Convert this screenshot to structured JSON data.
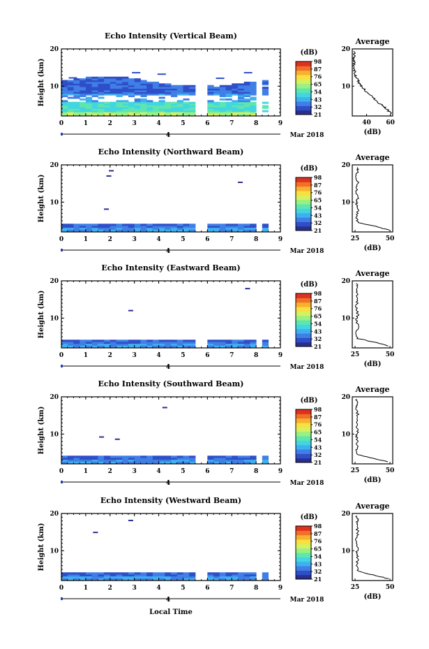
{
  "figure": {
    "xlabel": "Local Time",
    "date_label": "Mar 2018",
    "day_label": "4",
    "y_label": "Height (km)",
    "avg_title": "Average",
    "avg_xlabel": "(dB)",
    "cb_title": "(dB)"
  },
  "chart_data": [
    {
      "type": "heatmap",
      "title": "Echo Intensity (Vertical Beam)",
      "xlabel": "Local Time",
      "ylabel": "Height (km)",
      "xlim": [
        0,
        9
      ],
      "ylim": [
        2,
        20
      ],
      "xticks": [
        0,
        1,
        2,
        3,
        4,
        5,
        6,
        7,
        8,
        9
      ],
      "yticks": [
        10,
        20
      ],
      "colorbar": {
        "label": "(dB)",
        "ticks": [
          21,
          32,
          43,
          54,
          65,
          76,
          87,
          98
        ]
      },
      "average_profile": {
        "title": "Average",
        "xlabel": "(dB)",
        "xticks": [
          40,
          60
        ],
        "xlim": [
          28,
          62
        ],
        "ylim": [
          2,
          20
        ],
        "yticks": [
          10,
          20
        ],
        "points": [
          [
            61,
            2.5
          ],
          [
            58,
            3.5
          ],
          [
            55,
            4.5
          ],
          [
            50,
            5.5
          ],
          [
            47,
            6.5
          ],
          [
            44,
            7.5
          ],
          [
            40,
            8.5
          ],
          [
            37,
            9.5
          ],
          [
            34,
            10.5
          ],
          [
            33,
            11.5
          ],
          [
            31,
            12.5
          ],
          [
            30,
            13.5
          ],
          [
            30,
            14.5
          ],
          [
            29,
            15.5
          ],
          [
            30,
            16.5
          ],
          [
            29,
            17.5
          ],
          [
            30,
            18.5
          ],
          [
            29,
            19.5
          ]
        ]
      }
    },
    {
      "type": "heatmap",
      "title": "Echo Intensity (Northward Beam)",
      "xlabel": "Local Time",
      "ylabel": "Height (km)",
      "xlim": [
        0,
        9
      ],
      "ylim": [
        2,
        20
      ],
      "xticks": [
        0,
        1,
        2,
        3,
        4,
        5,
        6,
        7,
        8,
        9
      ],
      "yticks": [
        10,
        20
      ],
      "colorbar": {
        "label": "(dB)",
        "ticks": [
          21,
          32,
          43,
          54,
          65,
          76,
          87,
          98
        ]
      },
      "average_profile": {
        "title": "Average",
        "xlabel": "(dB)",
        "xticks": [
          25,
          50
        ],
        "xlim": [
          23,
          52
        ],
        "ylim": [
          2,
          20
        ],
        "yticks": [
          10,
          20
        ],
        "points": [
          [
            49,
            2.5
          ],
          [
            42,
            3.3
          ],
          [
            27,
            4.5
          ],
          [
            26,
            6
          ],
          [
            27,
            8
          ],
          [
            26,
            9.5
          ],
          [
            27,
            11
          ],
          [
            26,
            13
          ],
          [
            27,
            15
          ],
          [
            26,
            17
          ],
          [
            27,
            18.5
          ],
          [
            26,
            19.5
          ]
        ]
      }
    },
    {
      "type": "heatmap",
      "title": "Echo Intensity (Eastward Beam)",
      "xlabel": "Local Time",
      "ylabel": "Height (km)",
      "xlim": [
        0,
        9
      ],
      "ylim": [
        2,
        20
      ],
      "xticks": [
        0,
        1,
        2,
        3,
        4,
        5,
        6,
        7,
        8,
        9
      ],
      "yticks": [
        10,
        20
      ],
      "colorbar": {
        "label": "(dB)",
        "ticks": [
          21,
          32,
          43,
          54,
          65,
          76,
          87,
          98
        ]
      },
      "average_profile": {
        "title": "Average",
        "xlabel": "(dB)",
        "xticks": [
          25,
          50
        ],
        "xlim": [
          23,
          52
        ],
        "ylim": [
          2,
          20
        ],
        "yticks": [
          10,
          20
        ],
        "points": [
          [
            49,
            2.5
          ],
          [
            42,
            3.3
          ],
          [
            27,
            4.5
          ],
          [
            26,
            6
          ],
          [
            27,
            8
          ],
          [
            26,
            9.5
          ],
          [
            27,
            11
          ],
          [
            26,
            13
          ],
          [
            27,
            15
          ],
          [
            26,
            17
          ],
          [
            27,
            18.5
          ],
          [
            26,
            19.5
          ]
        ]
      }
    },
    {
      "type": "heatmap",
      "title": "Echo Intensity (Southward Beam)",
      "xlabel": "Local Time",
      "ylabel": "Height (km)",
      "xlim": [
        0,
        9
      ],
      "ylim": [
        2,
        20
      ],
      "xticks": [
        0,
        1,
        2,
        3,
        4,
        5,
        6,
        7,
        8,
        9
      ],
      "yticks": [
        10,
        20
      ],
      "colorbar": {
        "label": "(dB)",
        "ticks": [
          21,
          32,
          43,
          54,
          65,
          76,
          87,
          98
        ]
      },
      "average_profile": {
        "title": "Average",
        "xlabel": "(dB)",
        "xticks": [
          25,
          50
        ],
        "xlim": [
          23,
          52
        ],
        "ylim": [
          2,
          20
        ],
        "yticks": [
          10,
          20
        ],
        "points": [
          [
            49,
            2.5
          ],
          [
            40,
            3.3
          ],
          [
            27,
            4.5
          ],
          [
            26,
            6
          ],
          [
            27,
            8
          ],
          [
            26,
            9.5
          ],
          [
            27,
            11
          ],
          [
            26,
            13
          ],
          [
            27,
            15
          ],
          [
            26,
            17
          ],
          [
            27,
            18.5
          ],
          [
            26,
            19.5
          ]
        ]
      }
    },
    {
      "type": "heatmap",
      "title": "Echo Intensity (Westward Beam)",
      "xlabel": "Local Time",
      "ylabel": "Height (km)",
      "xlim": [
        0,
        9
      ],
      "ylim": [
        2,
        20
      ],
      "xticks": [
        0,
        1,
        2,
        3,
        4,
        5,
        6,
        7,
        8,
        9
      ],
      "yticks": [
        10,
        20
      ],
      "colorbar": {
        "label": "(dB)",
        "ticks": [
          21,
          32,
          43,
          54,
          65,
          76,
          87,
          98
        ]
      },
      "average_profile": {
        "title": "Average",
        "xlabel": "(dB)",
        "xticks": [
          25,
          50
        ],
        "xlim": [
          23,
          52
        ],
        "ylim": [
          2,
          20
        ],
        "yticks": [
          10,
          20
        ],
        "points": [
          [
            49,
            2.5
          ],
          [
            40,
            3.3
          ],
          [
            27,
            4.5
          ],
          [
            26,
            6
          ],
          [
            27,
            8
          ],
          [
            26,
            9.5
          ],
          [
            27,
            11
          ],
          [
            26,
            13
          ],
          [
            27,
            15
          ],
          [
            26,
            17
          ],
          [
            27,
            18.5
          ],
          [
            26,
            19.5
          ]
        ]
      }
    }
  ]
}
